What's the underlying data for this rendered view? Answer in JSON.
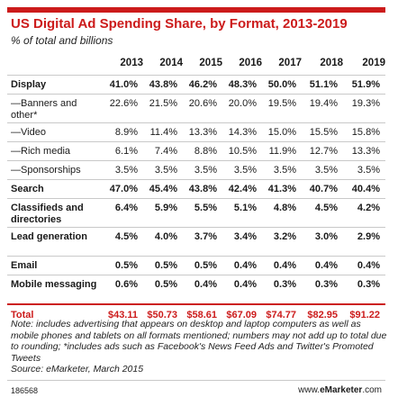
{
  "chart_data": {
    "type": "table",
    "title": "US Digital Ad Spending Share, by Format, 2013-2019",
    "subtitle": "% of total and billions",
    "columns": [
      "2013",
      "2014",
      "2015",
      "2016",
      "2017",
      "2018",
      "2019"
    ],
    "rows": [
      {
        "label": "Display",
        "style": "bold",
        "height": 21,
        "values": [
          "41.0%",
          "43.8%",
          "46.2%",
          "48.3%",
          "50.0%",
          "51.1%",
          "51.9%"
        ]
      },
      {
        "label": "—Banners and other*",
        "style": "sub",
        "height": 32,
        "values": [
          "22.6%",
          "21.5%",
          "20.6%",
          "20.0%",
          "19.5%",
          "19.4%",
          "19.3%"
        ]
      },
      {
        "label": "—Video",
        "style": "sub",
        "height": 21,
        "values": [
          "8.9%",
          "11.4%",
          "13.3%",
          "14.3%",
          "15.0%",
          "15.5%",
          "15.8%"
        ]
      },
      {
        "label": "—Rich media",
        "style": "sub",
        "height": 21,
        "values": [
          "6.1%",
          "7.4%",
          "8.8%",
          "10.5%",
          "11.9%",
          "12.7%",
          "13.3%"
        ]
      },
      {
        "label": "—Sponsorships",
        "style": "sub",
        "height": 21,
        "values": [
          "3.5%",
          "3.5%",
          "3.5%",
          "3.5%",
          "3.5%",
          "3.5%",
          "3.5%"
        ]
      },
      {
        "label": "Search",
        "style": "bold",
        "height": 21,
        "values": [
          "47.0%",
          "45.4%",
          "43.8%",
          "42.4%",
          "41.3%",
          "40.7%",
          "40.4%"
        ]
      },
      {
        "label": "Classifieds and directories",
        "style": "bold",
        "height": 32,
        "values": [
          "6.4%",
          "5.9%",
          "5.5%",
          "5.1%",
          "4.8%",
          "4.5%",
          "4.2%"
        ]
      },
      {
        "label": "Lead generation",
        "style": "bold",
        "height": 32,
        "values": [
          "4.5%",
          "4.0%",
          "3.7%",
          "3.4%",
          "3.2%",
          "3.0%",
          "2.9%"
        ]
      },
      {
        "label": "Email",
        "style": "bold",
        "height": 21,
        "values": [
          "0.5%",
          "0.5%",
          "0.5%",
          "0.4%",
          "0.4%",
          "0.4%",
          "0.4%"
        ]
      },
      {
        "label": "Mobile messaging",
        "style": "bold",
        "height": 32,
        "values": [
          "0.6%",
          "0.5%",
          "0.4%",
          "0.4%",
          "0.3%",
          "0.3%",
          "0.3%"
        ]
      }
    ],
    "total": {
      "label": "Total",
      "values": [
        "$43.11",
        "$50.73",
        "$58.61",
        "$67.09",
        "$74.77",
        "$82.95",
        "$91.22"
      ]
    },
    "note": "Note: includes advertising that appears on desktop and laptop computers as well as mobile phones and tablets on all formats mentioned; numbers may not add up to total due to rounding; *includes ads such as Facebook's News Feed Ads and Twitter's Promoted Tweets",
    "source": "Source: eMarketer, March 2015",
    "chart_id": "186568",
    "brand_prefix": "www.",
    "brand_name": "eMarketer",
    "brand_suffix": ".com",
    "accent_color": "#cc1b1b"
  }
}
